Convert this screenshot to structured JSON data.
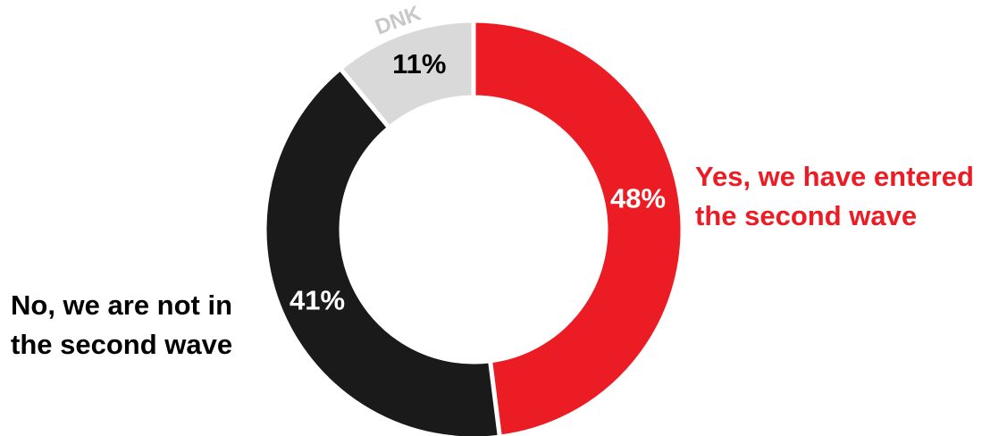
{
  "chart_data": {
    "type": "pie",
    "variant": "donut",
    "slices": [
      {
        "name": "Yes, we have entered the second wave",
        "label_lines": [
          "Yes, we have entered",
          "the second wave"
        ],
        "value": 48,
        "value_label": "48%",
        "color": "#ec1c24",
        "value_label_color": "#ffffff",
        "name_color": "#ec1c24"
      },
      {
        "name": "No, we are not in the second wave",
        "label_lines": [
          "No, we are not in",
          "the second wave"
        ],
        "value": 41,
        "value_label": "41%",
        "color": "#1a1a1a",
        "value_label_color": "#ffffff",
        "name_color": "#000000"
      },
      {
        "name": "DNK",
        "label_lines": [
          "DNK"
        ],
        "value": 11,
        "value_label": "11%",
        "color": "#d9d9d9",
        "value_label_color": "#000000",
        "name_color": "#c8c8c8"
      }
    ],
    "start_angle_deg": 0,
    "direction": "clockwise",
    "legend": "none"
  }
}
